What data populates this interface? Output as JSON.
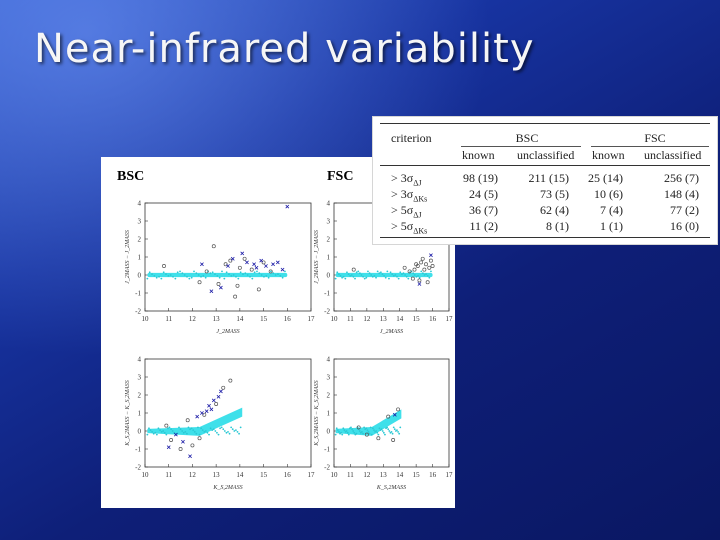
{
  "slide": {
    "title": "Near-infrared variability"
  },
  "figure": {
    "bsc_label": "BSC",
    "fsc_label": "FSC",
    "colors": {
      "unclassified": "#555555",
      "known": "#1a1aa6",
      "bulk": "#3fe0ea"
    },
    "panels": [
      {
        "id": "bsc-j",
        "x_ticks": [
          "10",
          "11",
          "12",
          "13",
          "14",
          "15",
          "16",
          "17"
        ],
        "y_ticks": [
          "4",
          "3",
          "2",
          "1",
          "0",
          "-1",
          "-2"
        ],
        "xlabel": "J_2MASS",
        "ylabel": "J_2MASS − J_2MASS"
      },
      {
        "id": "fsc-j",
        "x_ticks": [
          "10",
          "11",
          "12",
          "13",
          "14",
          "15",
          "16",
          "17"
        ],
        "y_ticks": [
          "4",
          "3",
          "2",
          "1",
          "0",
          "-1",
          "-2"
        ],
        "xlabel": "J_2MASS",
        "ylabel": "J_2MASS − J_2MASS"
      },
      {
        "id": "bsc-k",
        "x_ticks": [
          "10",
          "11",
          "12",
          "13",
          "14",
          "15",
          "16",
          "17"
        ],
        "y_ticks": [
          "4",
          "3",
          "2",
          "1",
          "0",
          "-1",
          "-2"
        ],
        "xlabel": "K_S,2MASS",
        "ylabel": "K_S,2MASS − K_S,2MASS"
      },
      {
        "id": "fsc-k",
        "x_ticks": [
          "10",
          "11",
          "12",
          "13",
          "14",
          "15",
          "16",
          "17"
        ],
        "y_ticks": [
          "4",
          "3",
          "2",
          "1",
          "0",
          "-1",
          "-2"
        ],
        "xlabel": "K_S,2MASS",
        "ylabel": "K_S,2MASS − K_S,2MASS"
      }
    ]
  },
  "table": {
    "headers": {
      "criterion": "criterion",
      "bsc": "BSC",
      "fsc": "FSC",
      "known": "known",
      "unclassified": "unclassified"
    },
    "rows": [
      {
        "crit": "> 3σ",
        "sub": "ΔJ",
        "bsc_known": "98 (19)",
        "bsc_uncl": "211 (15)",
        "fsc_known": "25 (14)",
        "fsc_uncl": "256 (7)"
      },
      {
        "crit": "> 3σ",
        "sub": "ΔKs",
        "bsc_known": "24 (5)",
        "bsc_uncl": "73 (5)",
        "fsc_known": "10 (6)",
        "fsc_uncl": "148 (4)"
      },
      {
        "crit": "> 5σ",
        "sub": "ΔJ",
        "bsc_known": "36 (7)",
        "bsc_uncl": "62 (4)",
        "fsc_known": "7 (4)",
        "fsc_uncl": "77 (2)"
      },
      {
        "crit": "> 5σ",
        "sub": "ΔKs",
        "bsc_known": "11 (2)",
        "bsc_uncl": "8 (1)",
        "fsc_known": "1 (1)",
        "fsc_uncl": "16 (0)"
      }
    ]
  },
  "chart_data": [
    {
      "type": "scatter",
      "name": "bsc-j",
      "xlim": [
        10,
        17
      ],
      "ylim": [
        -2,
        4
      ],
      "xlabel": "J_2MASS",
      "ylabel": "J_2MASS − J_2MASS",
      "bulk_band": {
        "x_start": 10.1,
        "x_end": 16.0,
        "y": 0.0,
        "half_width": 0.12
      },
      "series": [
        {
          "values": [
            [
              12.9,
              1.6
            ],
            [
              13.6,
              0.8
            ],
            [
              14.2,
              0.9
            ],
            [
              13.1,
              -0.5
            ],
            [
              13.8,
              -1.2
            ],
            [
              14.5,
              0.3
            ],
            [
              15.0,
              0.7
            ],
            [
              12.3,
              -0.4
            ],
            [
              14.8,
              -0.8
            ],
            [
              10.8,
              0.5
            ],
            [
              14.0,
              0.4
            ],
            [
              13.4,
              0.6
            ],
            [
              15.3,
              0.2
            ],
            [
              12.6,
              0.2
            ],
            [
              13.9,
              -0.6
            ]
          ]
        },
        {
          "values": [
            [
              14.3,
              0.7
            ],
            [
              14.6,
              0.6
            ],
            [
              14.9,
              0.8
            ],
            [
              13.7,
              0.9
            ],
            [
              15.6,
              0.7
            ],
            [
              12.8,
              -0.9
            ],
            [
              13.2,
              -0.7
            ],
            [
              14.1,
              1.2
            ],
            [
              15.1,
              0.5
            ],
            [
              15.4,
              0.6
            ],
            [
              14.7,
              0.4
            ],
            [
              13.5,
              0.5
            ],
            [
              16.0,
              3.8
            ],
            [
              12.4,
              0.6
            ],
            [
              15.8,
              0.3
            ]
          ]
        }
      ]
    },
    {
      "type": "scatter",
      "name": "fsc-j",
      "xlim": [
        10,
        17
      ],
      "ylim": [
        -2,
        4
      ],
      "xlabel": "J_2MASS",
      "ylabel": "J_2MASS − J_2MASS",
      "bulk_band": {
        "x_start": 10.1,
        "x_end": 16.0,
        "y": 0.0,
        "half_width": 0.12
      },
      "series": [
        {
          "values": [
            [
              15.1,
              0.5
            ],
            [
              15.3,
              0.7
            ],
            [
              15.6,
              0.6
            ],
            [
              15.8,
              0.4
            ],
            [
              14.9,
              0.3
            ],
            [
              15.4,
              0.9
            ],
            [
              16.0,
              0.5
            ],
            [
              14.6,
              0.2
            ],
            [
              15.2,
              -0.3
            ],
            [
              15.7,
              -0.4
            ],
            [
              14.3,
              0.4
            ],
            [
              15.5,
              0.3
            ],
            [
              15.9,
              0.8
            ],
            [
              14.8,
              -0.2
            ],
            [
              11.2,
              0.3
            ],
            [
              15.0,
              0.6
            ]
          ]
        },
        {
          "values": [
            [
              15.9,
              1.1
            ],
            [
              15.2,
              -0.5
            ]
          ]
        }
      ]
    },
    {
      "type": "scatter",
      "name": "bsc-k",
      "xlim": [
        10,
        17
      ],
      "ylim": [
        -2,
        4
      ],
      "xlabel": "K_S,2MASS",
      "ylabel": "K_S,2MASS − K_S,2MASS",
      "bulk_band": {
        "x_start": 10.1,
        "x_end": 14.1,
        "y": 0.0,
        "half_width": 0.12,
        "rise_to": 1.3
      },
      "series": [
        {
          "values": [
            [
              13.3,
              2.4
            ],
            [
              13.6,
              2.8
            ],
            [
              12.5,
              0.9
            ],
            [
              11.1,
              -0.5
            ],
            [
              11.5,
              -1.0
            ],
            [
              12.0,
              -0.8
            ],
            [
              12.3,
              -0.4
            ],
            [
              11.8,
              0.6
            ],
            [
              13.0,
              1.5
            ],
            [
              10.9,
              0.3
            ]
          ]
        },
        {
          "values": [
            [
              12.6,
              1.1
            ],
            [
              12.9,
              1.7
            ],
            [
              13.1,
              1.9
            ],
            [
              12.7,
              1.4
            ],
            [
              11.3,
              -0.2
            ],
            [
              11.9,
              -1.4
            ],
            [
              11.6,
              -0.6
            ],
            [
              12.2,
              0.8
            ],
            [
              13.2,
              2.2
            ],
            [
              12.4,
              1.0
            ],
            [
              11.0,
              -0.9
            ],
            [
              12.8,
              1.2
            ]
          ]
        }
      ]
    },
    {
      "type": "scatter",
      "name": "fsc-k",
      "xlim": [
        10,
        17
      ],
      "ylim": [
        -2,
        4
      ],
      "xlabel": "K_S,2MASS",
      "ylabel": "K_S,2MASS − K_S,2MASS",
      "bulk_band": {
        "x_start": 10.1,
        "x_end": 14.1,
        "y": 0.0,
        "half_width": 0.12,
        "rise_to": 1.2
      },
      "series": [
        {
          "values": [
            [
              13.6,
              -0.5
            ],
            [
              13.9,
              1.2
            ],
            [
              11.5,
              0.2
            ],
            [
              12.7,
              -0.4
            ],
            [
              13.3,
              0.8
            ],
            [
              12.0,
              -0.2
            ]
          ]
        },
        {
          "values": [
            [
              13.7,
              0.9
            ]
          ]
        }
      ]
    }
  ]
}
